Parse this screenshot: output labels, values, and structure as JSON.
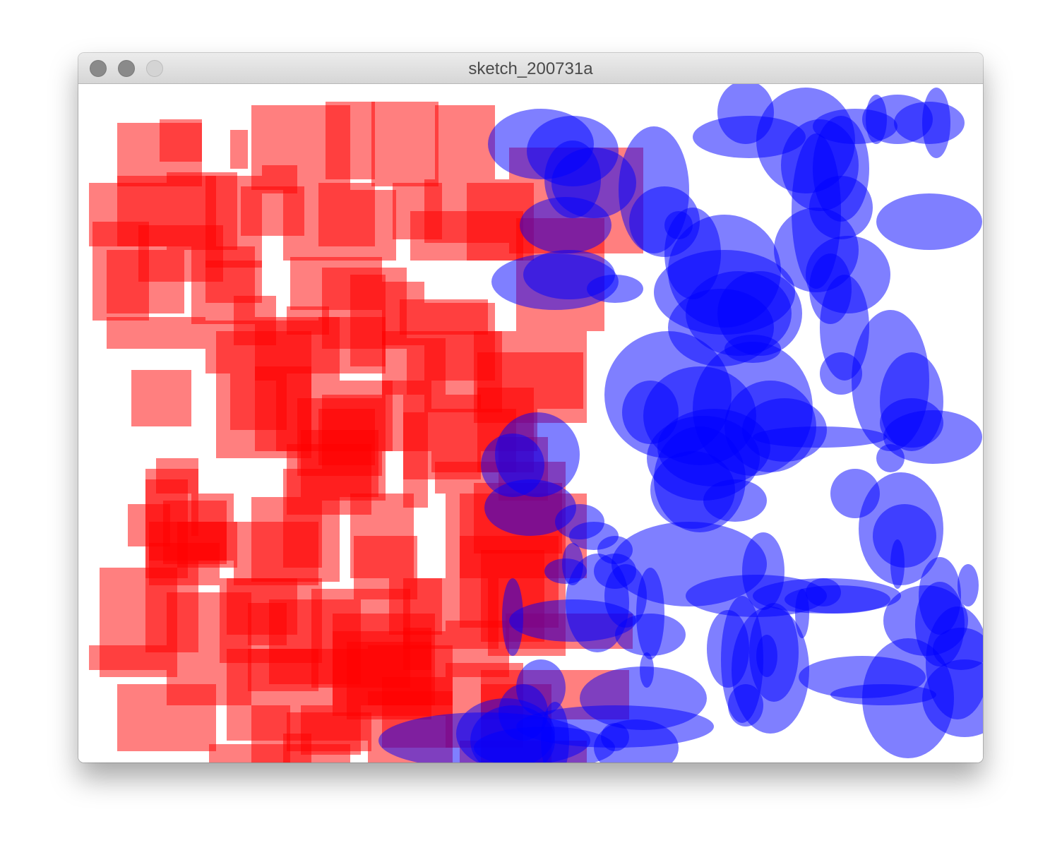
{
  "window": {
    "title": "sketch_200731a",
    "controls": [
      "close-button",
      "minimize-button",
      "zoom-button"
    ]
  },
  "canvas": {
    "background": "#ffffff",
    "shapes": {
      "red_rectangles": {
        "fill": "#ff0000",
        "opacity": 0.5
      },
      "blue_ellipses": {
        "fill": "#0000ff",
        "opacity": 0.5
      }
    }
  }
}
